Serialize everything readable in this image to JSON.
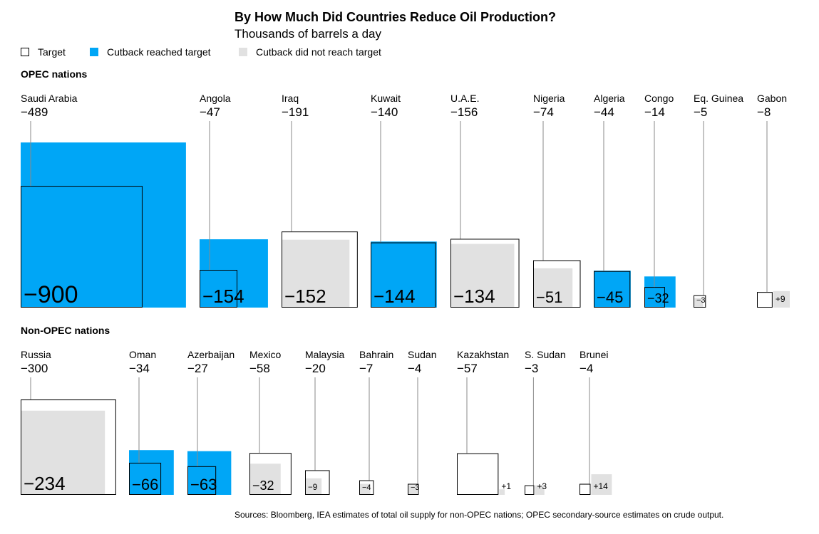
{
  "title": "By How Much Did Countries Reduce Oil Production?",
  "subtitle": "Thousands of barrels a day",
  "legend": [
    {
      "label": "Target",
      "kind": "target"
    },
    {
      "label": "Cutback reached target",
      "kind": "reached"
    },
    {
      "label": "Cutback did not reach target",
      "kind": "not_reached"
    }
  ],
  "colors": {
    "reached": "#00a6f6",
    "not_reached": "#e1e1e1",
    "target_stroke": "#000000",
    "leader": "#8a8a8a"
  },
  "source": "Sources: Bloomberg, IEA estimates of total oil supply for non-OPEC nations; OPEC secondary-source estimates on crude output.",
  "chart_data": [
    {
      "type": "bar",
      "title": "OPEC nations",
      "categories": [
        "Saudi Arabia",
        "Angola",
        "Iraq",
        "Kuwait",
        "U.A.E.",
        "Nigeria",
        "Algeria",
        "Congo",
        "Eq. Guinea",
        "Gabon"
      ],
      "series": [
        {
          "name": "Target",
          "values": [
            -489,
            -47,
            -191,
            -140,
            -156,
            -74,
            -44,
            -14,
            -5,
            -8
          ]
        },
        {
          "name": "Cutback",
          "values": [
            -900,
            -154,
            -152,
            -144,
            -134,
            -51,
            -45,
            -32,
            -3,
            9
          ]
        }
      ],
      "target_labels": [
        "−489",
        "−47",
        "−191",
        "−140",
        "−156",
        "−74",
        "−44",
        "−14",
        "−5",
        "−8"
      ],
      "actual_labels": [
        "−900",
        "−154",
        "−152",
        "−144",
        "−134",
        "−51",
        "−45",
        "−32",
        "−3",
        "+9"
      ]
    },
    {
      "type": "bar",
      "title": "Non-OPEC nations",
      "categories": [
        "Russia",
        "Oman",
        "Azerbaijan",
        "Mexico",
        "Malaysia",
        "Bahrain",
        "Sudan",
        "Kazakhstan",
        "S. Sudan",
        "Brunei"
      ],
      "series": [
        {
          "name": "Target",
          "values": [
            -300,
            -34,
            -27,
            -58,
            -20,
            -7,
            -4,
            -57,
            -3,
            -4
          ]
        },
        {
          "name": "Cutback",
          "values": [
            -234,
            -66,
            -63,
            -32,
            -9,
            -4,
            -3,
            1,
            3,
            14
          ]
        }
      ],
      "target_labels": [
        "−300",
        "−34",
        "−27",
        "−58",
        "−20",
        "−7",
        "−4",
        "−57",
        "−3",
        "−4"
      ],
      "actual_labels": [
        "−234",
        "−66",
        "−63",
        "−32",
        "−9",
        "−4",
        "−3",
        "+1",
        "+3",
        "+14"
      ]
    }
  ]
}
